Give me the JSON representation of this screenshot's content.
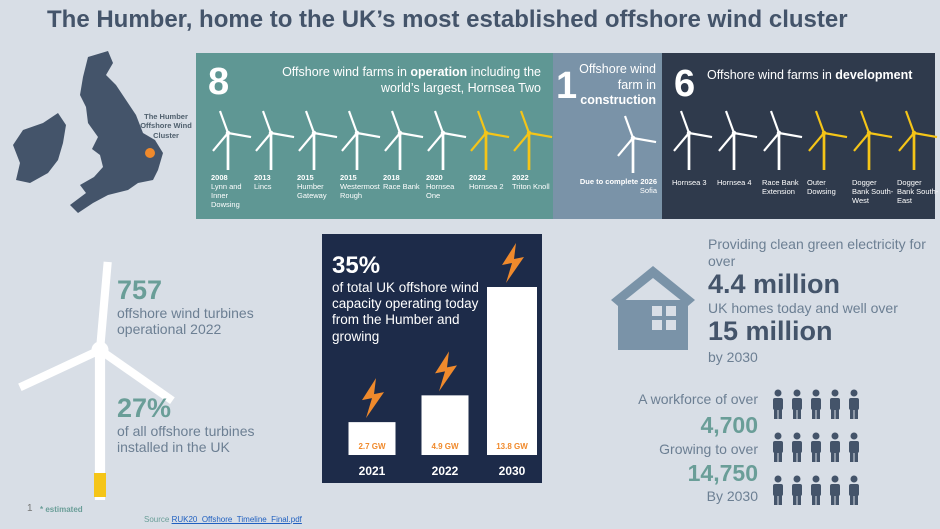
{
  "title": "The Humber, home to the UK’s most established offshore wind cluster",
  "map": {
    "label": "The Humber Offshore Wind Cluster",
    "marker_color": "#f08a2c"
  },
  "operation": {
    "count": "8",
    "text_pre": "Offshore wind farms in ",
    "text_bold": "operation",
    "text_post": " including the world’s largest, Hornsea Two",
    "farms": [
      {
        "year": "2008",
        "name": "Lynn and Inner Dowsing",
        "color": "#ffffff"
      },
      {
        "year": "2013",
        "name": "Lincs",
        "color": "#ffffff"
      },
      {
        "year": "2015",
        "name": "Humber Gateway",
        "color": "#ffffff"
      },
      {
        "year": "2015",
        "name": "Westermost Rough",
        "color": "#ffffff"
      },
      {
        "year": "2018",
        "name": "Race Bank",
        "color": "#ffffff"
      },
      {
        "year": "2020",
        "name": "Hornsea One",
        "color": "#ffffff"
      },
      {
        "year": "2022",
        "name": "Hornsea 2",
        "color": "#f5c518"
      },
      {
        "year": "2022",
        "name": "Triton Knoll",
        "color": "#f5c518"
      }
    ]
  },
  "construction": {
    "count": "1",
    "text_pre": "Offshore wind farm in",
    "text_bold": "construction",
    "due": "Due to complete 2026",
    "farm": "Sofia"
  },
  "development": {
    "count": "6",
    "text_pre": "Offshore wind farms in ",
    "text_bold": "development",
    "farms": [
      {
        "name": "Hornsea 3",
        "color": "#ffffff"
      },
      {
        "name": "Hornsea 4",
        "color": "#ffffff"
      },
      {
        "name": "Race Bank Extension",
        "color": "#ffffff"
      },
      {
        "name": "Outer Dowsing",
        "color": "#f5c518"
      },
      {
        "name": "Dogger Bank South-West",
        "color": "#f5c518"
      },
      {
        "name": "Dogger Bank South-East",
        "color": "#f5c518"
      }
    ]
  },
  "turbines": {
    "num": "757",
    "text": "offshore wind turbines operational 2022",
    "pct": "27%",
    "pct_text": "of all offshore turbines installed in the UK"
  },
  "capacity": {
    "pct": "35%",
    "text": "of total UK offshore wind capacity operating today from the Humber and growing",
    "chart_data": {
      "type": "bar",
      "categories": [
        "2021",
        "2022",
        "2030"
      ],
      "values": [
        2.7,
        4.9,
        13.8
      ],
      "value_labels": [
        "2.7 GW",
        "4.9 GW",
        "13.8 GW"
      ],
      "unit": "GW",
      "ylim": [
        0,
        14
      ]
    }
  },
  "homes": {
    "intro": "Providing clean green electricity for over",
    "num1": "4.4 million",
    "mid": "UK homes today and well over",
    "num2": "15 million",
    "by": "by 2030"
  },
  "workforce": {
    "intro": "A workforce of over",
    "num1": "4,700",
    "mid": "Growing to over",
    "num2": "14,750",
    "by": "By 2030"
  },
  "footer": {
    "page": "1",
    "note": "* estimated",
    "source_label": "Source ",
    "source_link": "RUK20_Offshore_Timeline_Final.pdf"
  },
  "colors": {
    "teal": "#5f9794",
    "slate": "#7a93a8",
    "dark": "#2f3a4c",
    "navy": "#1d2b49",
    "orange": "#f08a2c",
    "yellow": "#f5c518"
  }
}
